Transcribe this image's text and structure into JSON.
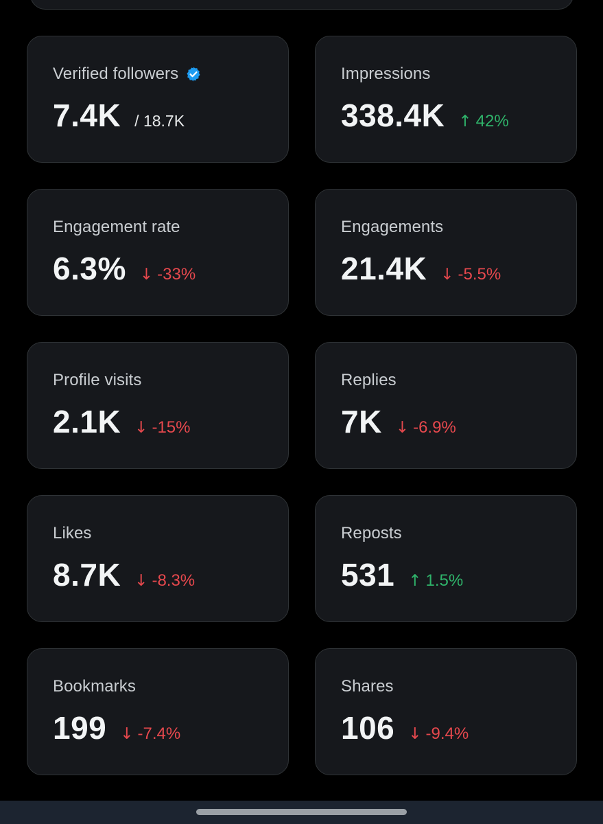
{
  "colors": {
    "background": "#000000",
    "card": "#16181c",
    "border": "#2f3336",
    "up": "#2fb36a",
    "down": "#e5484d",
    "verified": "#1d9bf0"
  },
  "metrics": [
    {
      "label": "Verified followers",
      "value": "7.4K",
      "sub_value": "/ 18.7K",
      "verified_icon": "verified-badge-icon"
    },
    {
      "label": "Impressions",
      "value": "338.4K",
      "direction": "up",
      "arrow": "↑",
      "change": "42%"
    },
    {
      "label": "Engagement rate",
      "value": "6.3%",
      "direction": "down",
      "arrow": "↓",
      "change": "-33%"
    },
    {
      "label": "Engagements",
      "value": "21.4K",
      "direction": "down",
      "arrow": "↓",
      "change": "-5.5%"
    },
    {
      "label": "Profile visits",
      "value": "2.1K",
      "direction": "down",
      "arrow": "↓",
      "change": "-15%"
    },
    {
      "label": "Replies",
      "value": "7K",
      "direction": "down",
      "arrow": "↓",
      "change": "-6.9%"
    },
    {
      "label": "Likes",
      "value": "8.7K",
      "direction": "down",
      "arrow": "↓",
      "change": "-8.3%"
    },
    {
      "label": "Reposts",
      "value": "531",
      "direction": "up",
      "arrow": "↑",
      "change": "1.5%"
    },
    {
      "label": "Bookmarks",
      "value": "199",
      "direction": "down",
      "arrow": "↓",
      "change": "-7.4%"
    },
    {
      "label": "Shares",
      "value": "106",
      "direction": "down",
      "arrow": "↓",
      "change": "-9.4%"
    }
  ]
}
